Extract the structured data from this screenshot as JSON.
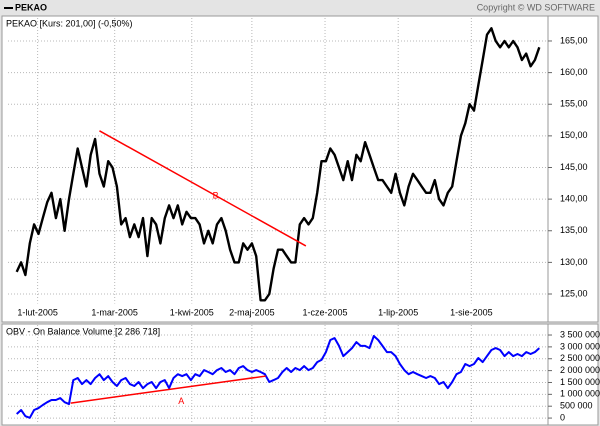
{
  "header": {
    "copyright": "Copyright © WD SOFTWARE"
  },
  "chart_data": [
    {
      "type": "line",
      "title": "PEKAO [Kurs: 201,00] (-0,50%)",
      "series": [
        {
          "name": "PEKAO",
          "color": "#000000",
          "values": [
            128.5,
            130,
            128,
            133,
            136,
            134.5,
            137,
            139.5,
            141,
            137,
            140,
            135,
            140,
            144,
            148,
            145,
            142,
            147,
            149.5,
            144,
            142,
            146,
            145,
            142,
            136,
            137,
            134,
            136,
            134,
            137,
            131,
            137,
            136,
            133,
            137,
            139,
            137,
            139,
            136,
            138,
            137,
            137,
            136,
            133,
            135,
            133,
            136,
            137,
            135,
            132,
            130,
            130,
            133,
            132,
            133,
            131,
            124,
            124,
            125,
            129,
            132,
            132,
            131,
            130,
            130,
            136,
            137,
            136,
            137,
            141,
            146,
            146,
            148,
            147,
            145,
            143,
            146,
            143,
            147,
            146,
            149,
            147,
            145,
            143,
            143,
            142,
            141,
            144,
            141,
            139,
            142,
            144,
            143,
            142,
            141,
            141,
            143,
            140,
            139,
            141,
            142,
            146,
            150,
            152,
            155,
            154,
            158,
            162,
            166,
            167,
            165,
            164,
            165,
            164,
            165,
            164,
            162,
            163,
            161,
            162,
            164
          ]
        }
      ],
      "xlim": [
        -2,
        122
      ],
      "xticks": [
        {
          "value": 4.8,
          "label": "1-lut-2005"
        },
        {
          "value": 22.5,
          "label": "1-mar-2005"
        },
        {
          "value": 40.2,
          "label": "1-kwi-2005"
        },
        {
          "value": 54,
          "label": "2-maj-2005"
        },
        {
          "value": 70.8,
          "label": "1-cze-2005"
        },
        {
          "value": 87.6,
          "label": "1-lip-2005"
        },
        {
          "value": 104.4,
          "label": "1-sie-2005"
        }
      ],
      "ylim": [
        123.5,
        168
      ],
      "yticks": [
        {
          "value": 125,
          "label": "125,00"
        },
        {
          "value": 130,
          "label": "130,00"
        },
        {
          "value": 135,
          "label": "135,00"
        },
        {
          "value": 140,
          "label": "140,00"
        },
        {
          "value": 145,
          "label": "145,00"
        },
        {
          "value": 150,
          "label": "150,00"
        },
        {
          "value": 155,
          "label": "155,00"
        },
        {
          "value": 160,
          "label": "160,00"
        },
        {
          "value": 165,
          "label": "165,00"
        }
      ],
      "grid": true,
      "trendlines": [
        {
          "label": "B",
          "color": "#ff0000",
          "x": [
            19,
            66.4
          ],
          "y": [
            150.8,
            132.6
          ]
        }
      ]
    },
    {
      "type": "line",
      "title": "OBV - On Balance Volume [2 286 718]",
      "series": [
        {
          "color": "#0000ff",
          "values": [
            170000,
            340000,
            80000,
            10000,
            340000,
            420000,
            550000,
            670000,
            760000,
            760000,
            840000,
            670000,
            590000,
            1600000,
            1690000,
            1430000,
            1600000,
            1430000,
            1690000,
            1850000,
            1600000,
            1770000,
            1520000,
            1350000,
            1600000,
            1690000,
            1430000,
            1350000,
            1520000,
            1260000,
            1430000,
            1520000,
            1260000,
            1520000,
            1600000,
            1260000,
            1690000,
            1850000,
            1770000,
            1850000,
            1600000,
            1850000,
            1770000,
            2020000,
            1940000,
            1850000,
            2020000,
            2110000,
            1940000,
            2020000,
            1850000,
            2110000,
            2190000,
            2020000,
            1940000,
            2020000,
            1940000,
            1850000,
            1520000,
            1600000,
            1690000,
            1940000,
            2110000,
            1940000,
            2110000,
            2020000,
            2190000,
            2020000,
            2110000,
            2360000,
            2450000,
            2780000,
            3290000,
            3370000,
            3040000,
            2610000,
            2780000,
            2950000,
            3200000,
            3040000,
            3040000,
            2950000,
            3460000,
            3290000,
            3040000,
            2780000,
            2780000,
            2610000,
            2280000,
            2020000,
            1850000,
            1940000,
            1850000,
            1770000,
            1690000,
            1770000,
            1690000,
            1430000,
            1520000,
            1260000,
            1520000,
            1850000,
            1940000,
            2280000,
            2190000,
            2280000,
            2530000,
            2360000,
            2610000,
            2870000,
            2950000,
            2870000,
            2610000,
            2780000,
            2610000,
            2700000,
            2610000,
            2780000,
            2700000,
            2780000,
            2950000
          ]
        }
      ],
      "xlim": [
        -2,
        122
      ],
      "xticks": [
        4.8,
        22.5,
        40.2,
        54,
        70.8,
        87.6,
        104.4
      ],
      "ylim": [
        -250000,
        3880000
      ],
      "yticks": [
        {
          "value": 0,
          "label": "0"
        },
        {
          "value": 500000,
          "label": "500 000"
        },
        {
          "value": 1000000,
          "label": "1 000 000"
        },
        {
          "value": 1500000,
          "label": "1 500 000"
        },
        {
          "value": 2000000,
          "label": "2 000 000"
        },
        {
          "value": 2500000,
          "label": "2 500 000"
        },
        {
          "value": 3000000,
          "label": "3 000 000"
        },
        {
          "value": 3500000,
          "label": "3 500 000"
        }
      ],
      "grid": true,
      "trendlines": [
        {
          "label": "A",
          "color": "#ff0000",
          "x": [
            12.4,
            57.2
          ],
          "y": [
            632000,
            1770000
          ]
        }
      ]
    }
  ]
}
